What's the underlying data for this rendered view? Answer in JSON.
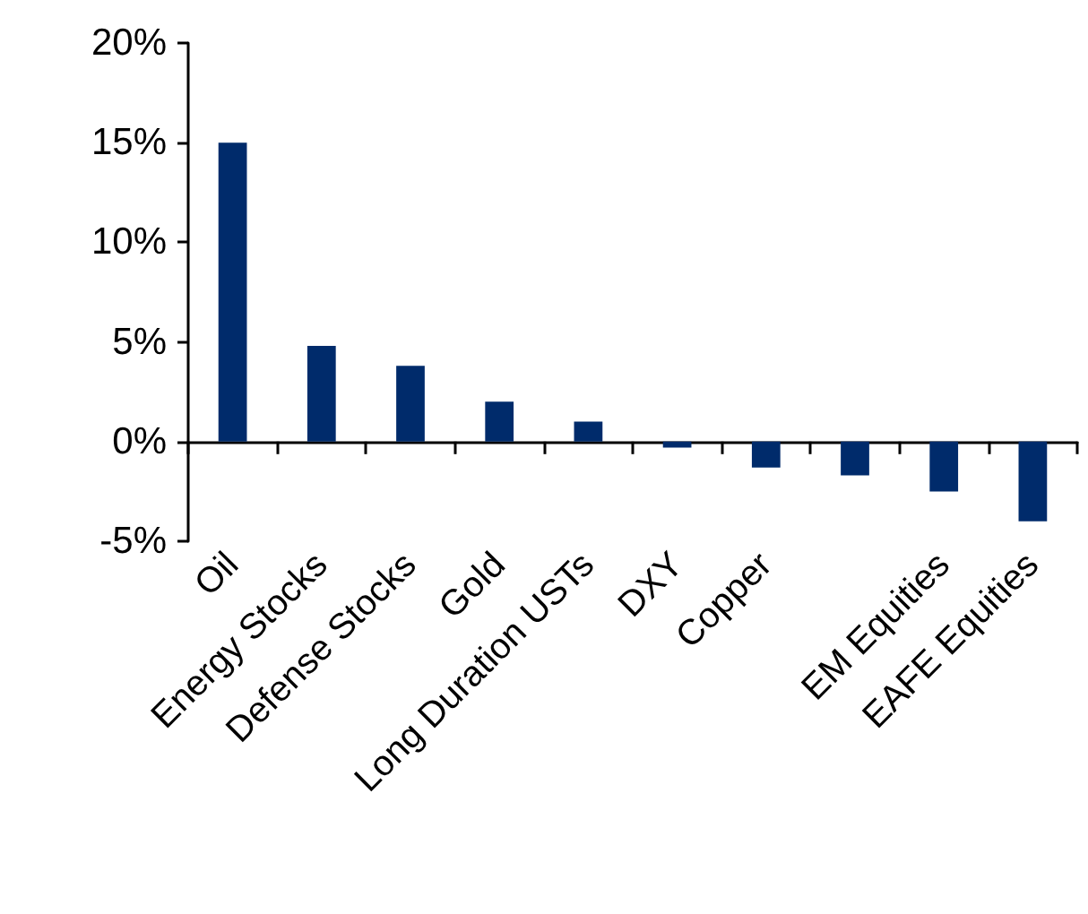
{
  "chart_data": {
    "type": "bar",
    "categories": [
      "Oil",
      "Energy Stocks",
      "Defense Stocks",
      "Gold",
      "Long Duration USTs",
      "DXY",
      "Copper",
      null,
      "EM Equities",
      "EAFE Equities"
    ],
    "values": [
      15.0,
      4.8,
      3.8,
      2.0,
      1.0,
      -0.3,
      -1.3,
      -1.7,
      -2.5,
      -4.0
    ],
    "color": "#002b6b",
    "ylim": [
      -5,
      20
    ],
    "yticks": [
      {
        "value": -5,
        "label": "-5%"
      },
      {
        "value": 0,
        "label": "0%"
      },
      {
        "value": 5,
        "label": "5%"
      },
      {
        "value": 10,
        "label": "10%"
      },
      {
        "value": 15,
        "label": "15%"
      },
      {
        "value": 20,
        "label": "20%"
      }
    ],
    "data_labels": false
  }
}
